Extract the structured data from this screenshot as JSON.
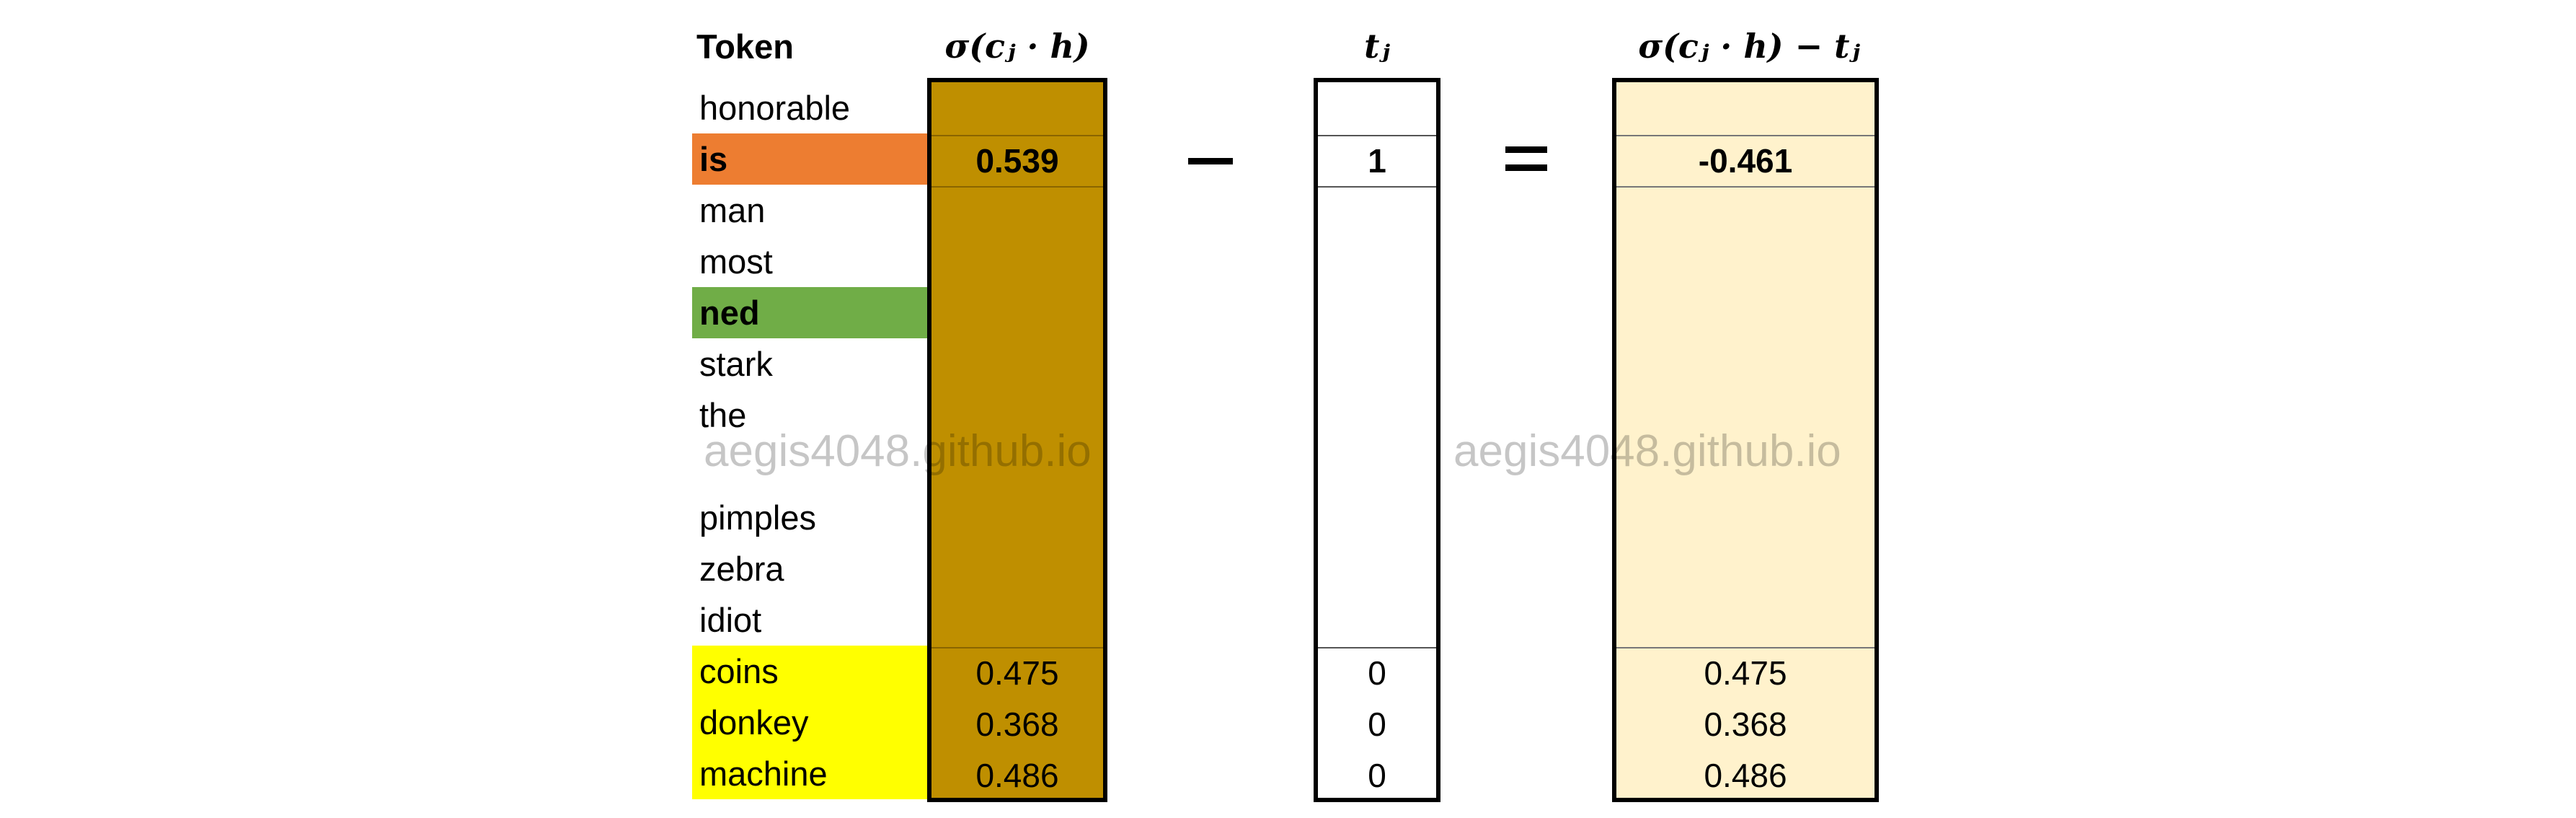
{
  "headers": {
    "token": "Token",
    "sigma": "σ(cⱼ · h)",
    "t": "tⱼ",
    "diff": "σ(cⱼ · h) − tⱼ"
  },
  "tokens": [
    {
      "label": "honorable",
      "highlight": "",
      "bold": false
    },
    {
      "label": "is",
      "highlight": "#ed7d31",
      "bold": true
    },
    {
      "label": "man",
      "highlight": "",
      "bold": false
    },
    {
      "label": "most",
      "highlight": "",
      "bold": false
    },
    {
      "label": "ned",
      "highlight": "#70ad47",
      "bold": true
    },
    {
      "label": "stark",
      "highlight": "",
      "bold": false
    },
    {
      "label": "the",
      "highlight": "",
      "bold": false
    },
    {
      "label": "pimples",
      "highlight": "",
      "bold": false
    },
    {
      "label": "zebra",
      "highlight": "",
      "bold": false
    },
    {
      "label": "idiot",
      "highlight": "",
      "bold": false
    },
    {
      "label": "coins",
      "highlight": "#ffff00",
      "bold": false
    },
    {
      "label": "donkey",
      "highlight": "#ffff00",
      "bold": false
    },
    {
      "label": "machine",
      "highlight": "#ffff00",
      "bold": false
    }
  ],
  "sigma_values": {
    "is": "0.539",
    "coins": "0.475",
    "donkey": "0.368",
    "machine": "0.486"
  },
  "t_values": {
    "is": "1",
    "coins": "0",
    "donkey": "0",
    "machine": "0"
  },
  "diff_values": {
    "is": "-0.461",
    "coins": "0.475",
    "donkey": "0.368",
    "machine": "0.486"
  },
  "watermark": "aegis4048.github.io",
  "colors": {
    "sigma_fill": "#bf8f00",
    "diff_fill": "#fff2cc",
    "t_fill": "#ffffff",
    "orange": "#ed7d31",
    "green": "#70ad47",
    "yellow": "#ffff00"
  }
}
